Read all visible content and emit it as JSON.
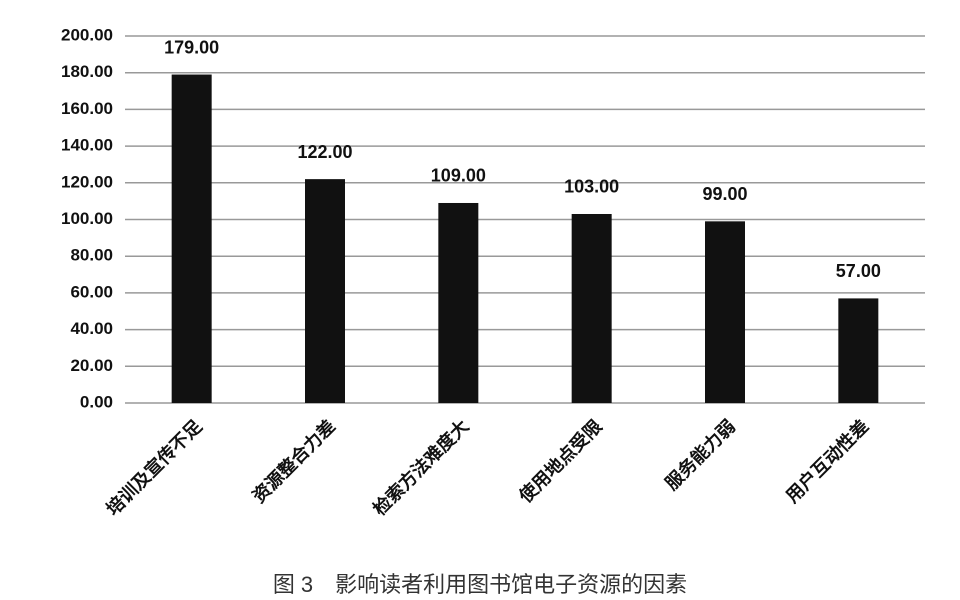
{
  "chart_data": {
    "type": "bar",
    "title": "图 3　影响读者利用图书馆电子资源的因素",
    "categories": [
      "培训及宣传不足",
      "资源整合力差",
      "检索方法难度大",
      "使用地点受限",
      "服务能力弱",
      "用户互动性差"
    ],
    "values": [
      179,
      122,
      109,
      103,
      99,
      57
    ],
    "value_labels": [
      "179.00",
      "122.00",
      "109.00",
      "103.00",
      "99.00",
      "57.00"
    ],
    "color": "#111111",
    "ylim": [
      0,
      200
    ],
    "yticks": [
      {
        "value": 0,
        "label": "0.00"
      },
      {
        "value": 20,
        "label": "20.00"
      },
      {
        "value": 40,
        "label": "40.00"
      },
      {
        "value": 60,
        "label": "60.00"
      },
      {
        "value": 80,
        "label": "80.00"
      },
      {
        "value": 100,
        "label": "100.00"
      },
      {
        "value": 120,
        "label": "120.00"
      },
      {
        "value": 140,
        "label": "140.00"
      },
      {
        "value": 160,
        "label": "160.00"
      },
      {
        "value": 180,
        "label": "180.00"
      },
      {
        "value": 200,
        "label": "200.00"
      }
    ],
    "grid": true
  }
}
